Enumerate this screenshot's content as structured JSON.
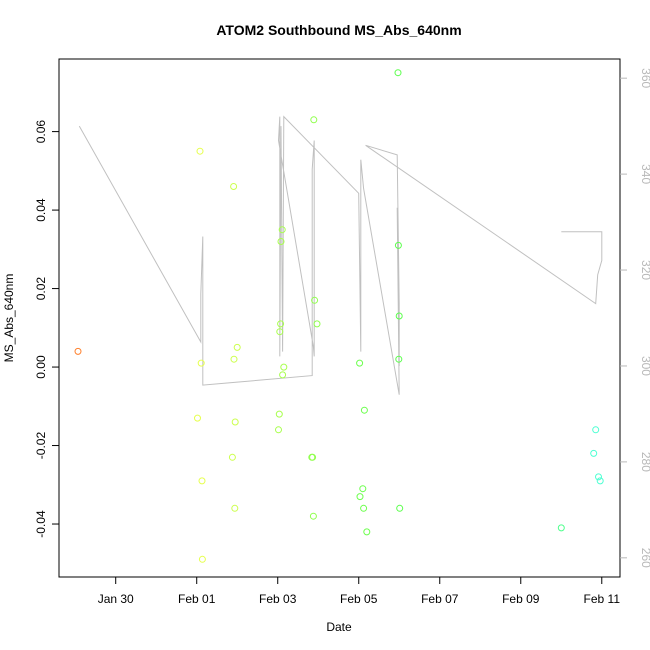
{
  "chart_data": {
    "type": "scatter",
    "title": "ATOM2 Southbound MS_Abs_640nm",
    "xlabel": "Date",
    "ylabel": "MS_Abs_640nm",
    "xlim": [
      28.6,
      42.45
    ],
    "ylim": [
      -0.0535,
      0.0785
    ],
    "y2lim": [
      256,
      364
    ],
    "x_ticks": [
      {
        "value": 30,
        "label": "Jan 30"
      },
      {
        "value": 32,
        "label": "Feb 01"
      },
      {
        "value": 34,
        "label": "Feb 03"
      },
      {
        "value": 36,
        "label": "Feb 05"
      },
      {
        "value": 38,
        "label": "Feb 07"
      },
      {
        "value": 40,
        "label": "Feb 09"
      },
      {
        "value": 42,
        "label": "Feb 11"
      }
    ],
    "y_ticks": [
      {
        "value": -0.04,
        "label": "-0.04"
      },
      {
        "value": -0.02,
        "label": "-0.02"
      },
      {
        "value": 0.0,
        "label": "0.00"
      },
      {
        "value": 0.02,
        "label": "0.02"
      },
      {
        "value": 0.04,
        "label": "0.04"
      },
      {
        "value": 0.06,
        "label": "0.06"
      }
    ],
    "y2_ticks": [
      {
        "value": 260,
        "label": "260"
      },
      {
        "value": 280,
        "label": "280"
      },
      {
        "value": 300,
        "label": "300"
      },
      {
        "value": 320,
        "label": "320"
      },
      {
        "value": 340,
        "label": "340"
      },
      {
        "value": 360,
        "label": "360"
      }
    ],
    "points": [
      {
        "x": 29.07,
        "y": 0.004,
        "color": "#ff7f2a"
      },
      {
        "x": 32.02,
        "y": -0.013,
        "color": "#e6ff4d"
      },
      {
        "x": 32.08,
        "y": 0.055,
        "color": "#e6ff4d"
      },
      {
        "x": 32.11,
        "y": 0.001,
        "color": "#e6ff4d"
      },
      {
        "x": 32.13,
        "y": -0.029,
        "color": "#e6ff4d"
      },
      {
        "x": 32.14,
        "y": -0.049,
        "color": "#e6ff4d"
      },
      {
        "x": 32.88,
        "y": -0.023,
        "color": "#ccff4d"
      },
      {
        "x": 32.91,
        "y": 0.046,
        "color": "#ccff4d"
      },
      {
        "x": 32.92,
        "y": 0.002,
        "color": "#ccff4d"
      },
      {
        "x": 32.94,
        "y": -0.036,
        "color": "#ccff4d"
      },
      {
        "x": 32.95,
        "y": -0.014,
        "color": "#ccff4d"
      },
      {
        "x": 33.0,
        "y": 0.005,
        "color": "#ccff4d"
      },
      {
        "x": 34.02,
        "y": -0.016,
        "color": "#a8ff4d"
      },
      {
        "x": 34.04,
        "y": -0.012,
        "color": "#a8ff4d"
      },
      {
        "x": 34.05,
        "y": 0.009,
        "color": "#a8ff4d"
      },
      {
        "x": 34.07,
        "y": 0.011,
        "color": "#a8ff4d"
      },
      {
        "x": 34.08,
        "y": 0.032,
        "color": "#a8ff4d"
      },
      {
        "x": 34.11,
        "y": 0.035,
        "color": "#a8ff4d"
      },
      {
        "x": 34.12,
        "y": -0.002,
        "color": "#a8ff4d"
      },
      {
        "x": 34.15,
        "y": 0.0,
        "color": "#a8ff4d"
      },
      {
        "x": 34.84,
        "y": -0.023,
        "color": "#90ff4d"
      },
      {
        "x": 34.86,
        "y": -0.023,
        "color": "#90ff4d"
      },
      {
        "x": 34.89,
        "y": 0.063,
        "color": "#90ff4d"
      },
      {
        "x": 34.91,
        "y": 0.017,
        "color": "#90ff4d"
      },
      {
        "x": 34.88,
        "y": -0.038,
        "color": "#90ff4d"
      },
      {
        "x": 34.97,
        "y": 0.011,
        "color": "#90ff4d"
      },
      {
        "x": 36.02,
        "y": 0.001,
        "color": "#6cff4d"
      },
      {
        "x": 36.03,
        "y": -0.033,
        "color": "#6cff4d"
      },
      {
        "x": 36.1,
        "y": -0.031,
        "color": "#6cff4d"
      },
      {
        "x": 36.12,
        "y": -0.036,
        "color": "#6cff4d"
      },
      {
        "x": 36.14,
        "y": -0.011,
        "color": "#6cff4d"
      },
      {
        "x": 36.2,
        "y": -0.042,
        "color": "#6cff4d"
      },
      {
        "x": 36.97,
        "y": 0.075,
        "color": "#5cff4d"
      },
      {
        "x": 36.98,
        "y": 0.031,
        "color": "#5cff4d"
      },
      {
        "x": 36.99,
        "y": 0.002,
        "color": "#5cff4d"
      },
      {
        "x": 37.0,
        "y": 0.013,
        "color": "#5cff4d"
      },
      {
        "x": 37.01,
        "y": -0.036,
        "color": "#5cff4d"
      },
      {
        "x": 41.0,
        "y": -0.041,
        "color": "#4dff8c"
      },
      {
        "x": 41.8,
        "y": -0.022,
        "color": "#4dffd2"
      },
      {
        "x": 41.85,
        "y": -0.016,
        "color": "#4dffd2"
      },
      {
        "x": 41.92,
        "y": -0.028,
        "color": "#4dffd2"
      },
      {
        "x": 41.96,
        "y": -0.029,
        "color": "#4dffd2"
      }
    ],
    "line_secondary": {
      "color": "#c0c0c0",
      "points": [
        [
          29.1,
          350
        ],
        [
          32.1,
          305
        ],
        [
          32.1,
          315
        ],
        [
          32.15,
          327
        ],
        [
          32.15,
          303
        ],
        [
          32.15,
          296
        ],
        [
          34.85,
          298
        ],
        [
          34.85,
          341
        ],
        [
          34.9,
          347
        ],
        [
          34.9,
          302
        ],
        [
          34.88,
          304
        ],
        [
          34.02,
          347
        ],
        [
          34.05,
          352
        ],
        [
          34.05,
          302
        ],
        [
          34.08,
          350
        ],
        [
          34.12,
          303
        ],
        [
          34.15,
          352
        ],
        [
          36.0,
          336
        ],
        [
          36.05,
          303
        ],
        [
          36.05,
          343
        ],
        [
          36.12,
          337
        ],
        [
          37.0,
          294
        ],
        [
          36.95,
          333
        ],
        [
          37.0,
          300
        ],
        [
          37.0,
          313
        ],
        [
          36.95,
          344
        ],
        [
          36.17,
          346
        ],
        [
          41.85,
          313
        ],
        [
          41.9,
          319
        ],
        [
          42.0,
          322
        ],
        [
          42.0,
          328
        ],
        [
          41.0,
          328
        ]
      ]
    }
  }
}
